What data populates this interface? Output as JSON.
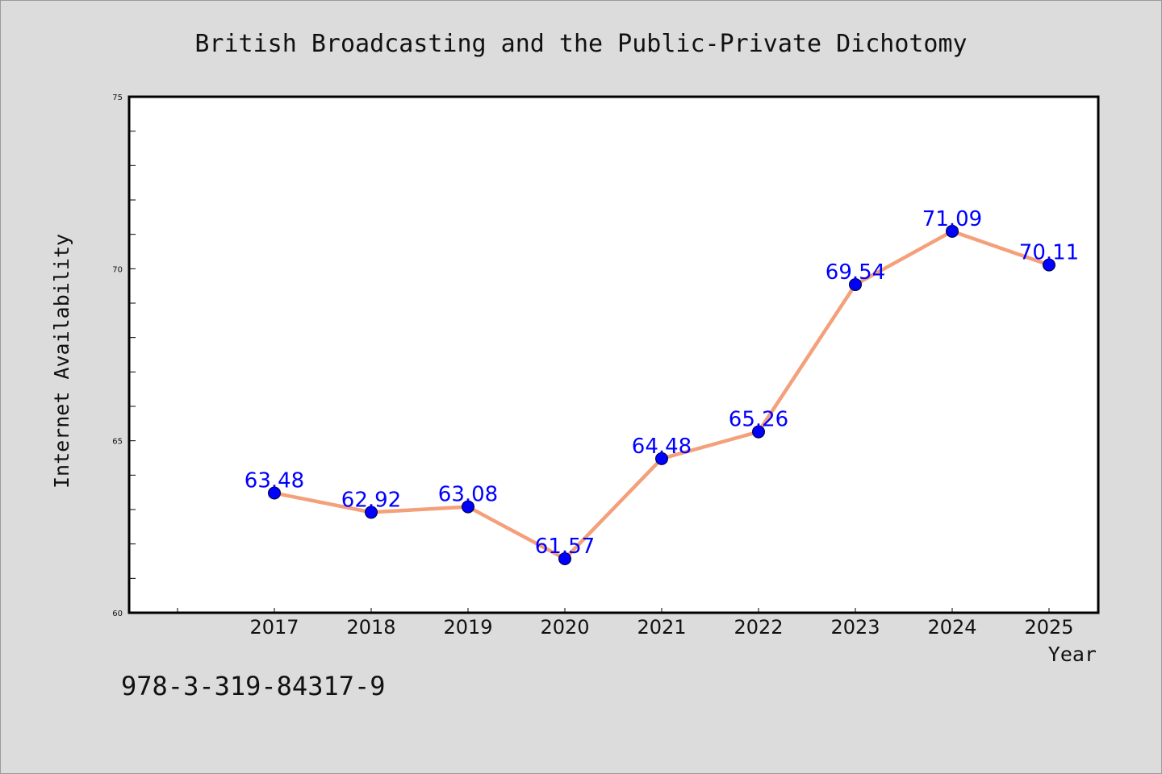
{
  "chart_data": {
    "type": "line",
    "title": "British Broadcasting and the Public-Private Dichotomy",
    "xlabel": "Year",
    "ylabel": "Internet Availability",
    "categories": [
      "2017",
      "2018",
      "2019",
      "2020",
      "2021",
      "2022",
      "2023",
      "2024",
      "2025"
    ],
    "series": [
      {
        "values": [
          63.48,
          62.92,
          63.08,
          61.57,
          64.48,
          65.26,
          69.54,
          71.09,
          70.11
        ]
      }
    ],
    "data_labels": [
      "63.48",
      "62.92",
      "63.08",
      "61.57",
      "64.48",
      "65.26",
      "69.54",
      "71.09",
      "70.11"
    ],
    "ylim": [
      60,
      75
    ],
    "yticks": [
      "60",
      "65",
      "70",
      "75"
    ],
    "grid": false,
    "legend": "none",
    "colors": {
      "line": "#f4a07a",
      "marker": "#0000ff",
      "label": "#0000ff",
      "background": "#dcdcdc",
      "plot_background": "#ffffff"
    }
  },
  "footer": {
    "isbn": "978-3-319-84317-9"
  }
}
